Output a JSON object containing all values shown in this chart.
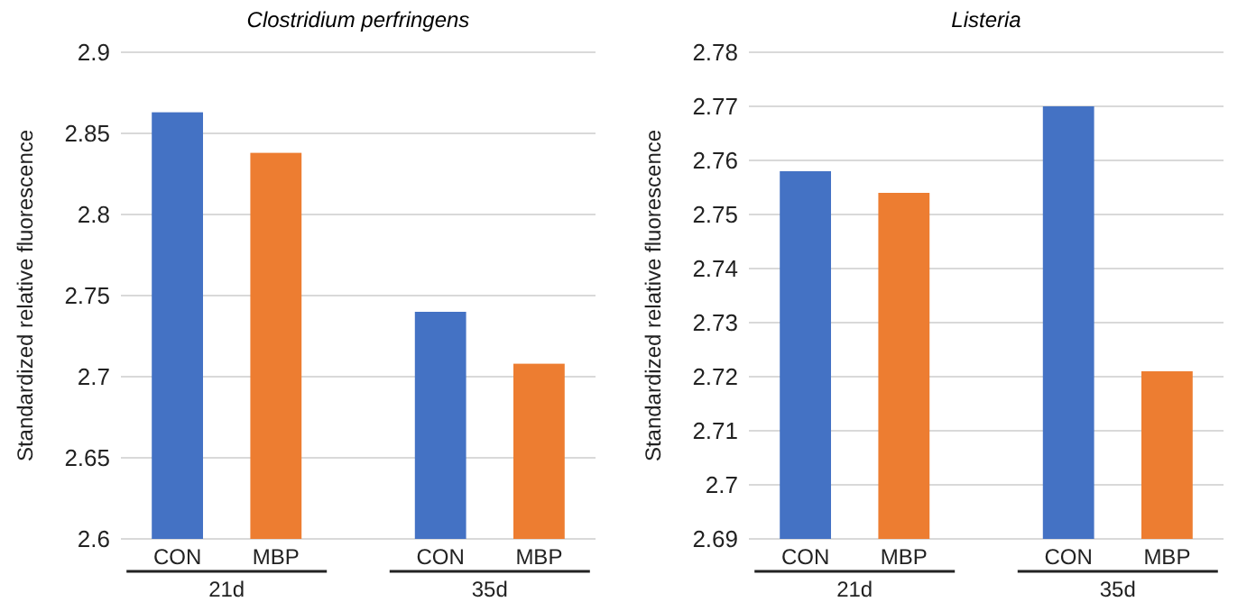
{
  "chart_data": [
    {
      "type": "bar",
      "title": "Clostridium perfringens",
      "ylabel": "Standardized relative fluorescence",
      "categories": [
        "CON",
        "MBP",
        "CON",
        "MBP"
      ],
      "values": [
        2.863,
        2.838,
        2.74,
        2.708
      ],
      "colors": [
        "#4472c4",
        "#ed7d31",
        "#4472c4",
        "#ed7d31"
      ],
      "ylim": [
        2.6,
        2.9
      ],
      "yticks": [
        2.6,
        2.65,
        2.7,
        2.75,
        2.8,
        2.85,
        2.9
      ],
      "grid": "y",
      "annotations": [
        "21d",
        "35d"
      ]
    },
    {
      "type": "bar",
      "title": "Listeria",
      "ylabel": "Standardized relative fluorescence",
      "categories": [
        "CON",
        "MBP",
        "CON",
        "MBP"
      ],
      "values": [
        2.758,
        2.754,
        2.77,
        2.721
      ],
      "colors": [
        "#4472c4",
        "#ed7d31",
        "#4472c4",
        "#ed7d31"
      ],
      "ylim": [
        2.69,
        2.78
      ],
      "yticks": [
        2.69,
        2.7,
        2.71,
        2.72,
        2.73,
        2.74,
        2.75,
        2.76,
        2.77,
        2.78
      ],
      "grid": "y",
      "annotations": [
        "21d",
        "35d"
      ]
    }
  ]
}
